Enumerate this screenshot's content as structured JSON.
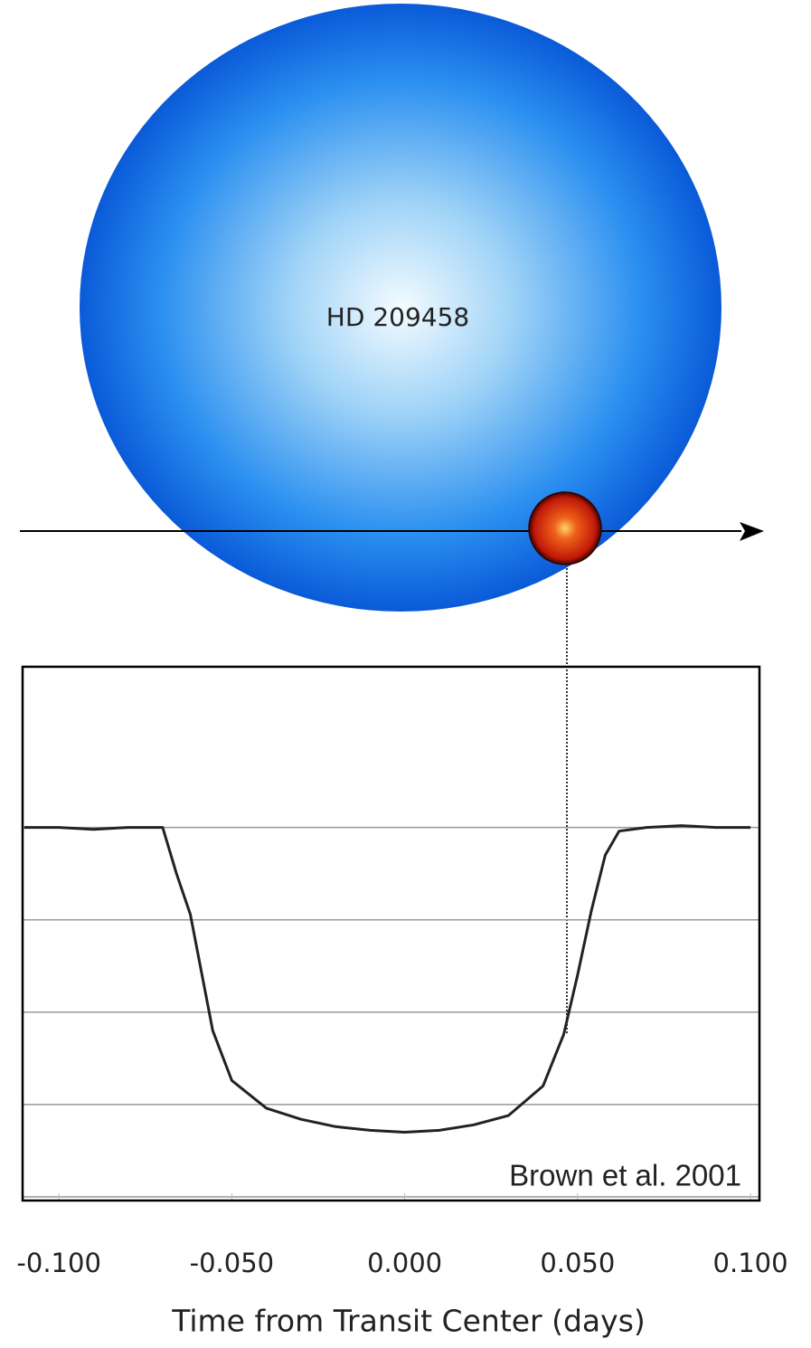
{
  "chart_data": {
    "type": "line",
    "star_label": "HD 209458",
    "annotation": "Brown et al. 2001",
    "xlabel": "Time from Transit Center (days)",
    "x": [
      -0.11,
      -0.1,
      -0.09,
      -0.08,
      -0.07,
      -0.066,
      -0.062,
      -0.0555,
      -0.05,
      -0.04,
      -0.03,
      -0.02,
      -0.01,
      0.0,
      0.01,
      0.02,
      0.03,
      0.04,
      0.046,
      0.05,
      0.054,
      0.058,
      0.062,
      0.07,
      0.08,
      0.09,
      0.1
    ],
    "values": [
      1.0,
      1.0,
      0.9999,
      1.0,
      1.0,
      0.9975,
      0.9953,
      0.989,
      0.9863,
      0.9848,
      0.9842,
      0.9838,
      0.9836,
      0.9835,
      0.9836,
      0.9839,
      0.9844,
      0.986,
      0.9888,
      0.992,
      0.9955,
      0.9985,
      0.9998,
      1.0,
      1.0001,
      1.0,
      1.0
    ],
    "color": "#222222",
    "xlim": [
      -0.1105,
      0.1026
    ],
    "ylim": [
      0.9798,
      1.0087
    ],
    "xticks": [
      {
        "value": -0.1,
        "label": "-0.100"
      },
      {
        "value": -0.05,
        "label": "-0.050"
      },
      {
        "value": 0,
        "label": "0.000"
      },
      {
        "value": 0.05,
        "label": "0.050"
      },
      {
        "value": 0.1,
        "label": "0.100"
      }
    ],
    "ygrid": [
      0.98,
      0.985,
      0.99,
      0.995,
      1.0
    ],
    "grid": true
  }
}
